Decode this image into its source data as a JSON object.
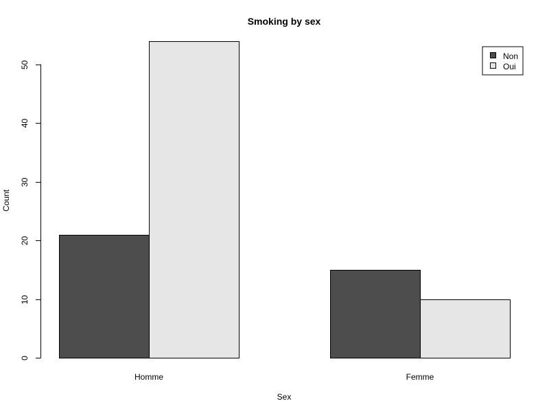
{
  "chart_data": {
    "type": "bar",
    "title": "Smoking by sex",
    "xlabel": "Sex",
    "ylabel": "Count",
    "categories": [
      "Homme",
      "Femme"
    ],
    "series": [
      {
        "name": "Non",
        "values": [
          21,
          15
        ],
        "color": "#4d4d4d"
      },
      {
        "name": "Oui",
        "values": [
          54,
          10
        ],
        "color": "#e6e6e6"
      }
    ],
    "yticks": [
      "0",
      "10",
      "20",
      "30",
      "40",
      "50"
    ],
    "ylim": [
      0,
      54
    ],
    "grid": false,
    "legend_position": "top-right"
  }
}
